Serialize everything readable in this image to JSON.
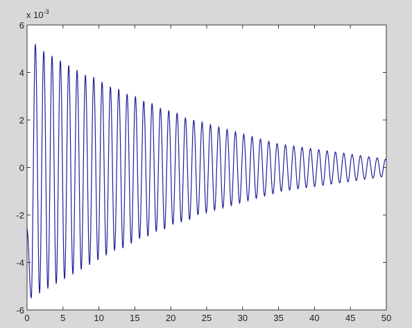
{
  "chart_data": {
    "type": "line",
    "title": "",
    "xlabel": "",
    "ylabel": "",
    "exponent_label": "x 10",
    "exponent_power": "-3",
    "xlim": [
      0,
      50
    ],
    "ylim": [
      -6,
      6
    ],
    "xticks": [
      0,
      5,
      10,
      15,
      20,
      25,
      30,
      35,
      40,
      45,
      50
    ],
    "yticks": [
      -6,
      -4,
      -2,
      0,
      2,
      4,
      6
    ],
    "xtick_labels": [
      "0",
      "5",
      "10",
      "15",
      "20",
      "25",
      "30",
      "35",
      "40",
      "45",
      "50"
    ],
    "ytick_labels": [
      "-6",
      "-4",
      "-2",
      "0",
      "2",
      "4",
      "6"
    ],
    "grid": false,
    "series": [
      {
        "color": "#1f1f9a",
        "x": [
          0.0,
          0.58,
          1.16,
          1.74,
          2.32,
          2.9,
          3.48,
          4.06,
          4.64,
          5.22,
          5.8,
          6.38,
          6.96,
          7.54,
          8.12,
          8.7,
          9.28,
          9.86,
          10.44,
          11.02,
          11.6,
          12.18,
          12.76,
          13.34,
          13.92,
          14.5,
          15.08,
          15.66,
          16.24,
          16.82,
          17.4,
          17.98,
          18.56,
          19.14,
          19.72,
          20.3,
          20.88,
          21.46,
          22.04,
          22.62,
          23.2,
          23.78,
          24.36,
          24.94,
          25.52,
          26.1,
          26.68,
          27.26,
          27.84,
          28.42,
          29.0,
          29.58,
          30.16,
          30.74,
          31.32,
          31.9,
          32.48,
          33.06,
          33.64,
          34.22,
          34.8,
          35.38,
          35.96,
          36.54,
          37.12,
          37.7,
          38.28,
          38.86,
          39.44,
          40.02,
          40.6,
          41.18,
          41.76,
          42.34,
          42.92,
          43.5,
          44.08,
          44.66,
          45.24,
          45.82,
          46.4,
          46.98,
          47.56,
          48.14,
          48.72,
          49.3,
          49.88,
          50.0
        ],
        "y": [
          -2.6,
          -5.5,
          5.2,
          -5.3,
          4.9,
          -5.1,
          4.7,
          -4.9,
          4.5,
          -4.7,
          4.3,
          -4.5,
          4.1,
          -4.3,
          3.9,
          -4.1,
          3.8,
          -3.9,
          3.6,
          -3.7,
          3.4,
          -3.5,
          3.3,
          -3.4,
          3.1,
          -3.2,
          3.0,
          -3.0,
          2.8,
          -2.9,
          2.7,
          -2.7,
          2.5,
          -2.6,
          2.4,
          -2.4,
          2.3,
          -2.3,
          2.1,
          -2.2,
          2.0,
          -2.0,
          1.9,
          -1.9,
          1.8,
          -1.8,
          1.7,
          -1.7,
          1.6,
          -1.6,
          1.5,
          -1.5,
          1.4,
          -1.4,
          1.3,
          -1.3,
          1.2,
          -1.2,
          1.1,
          -1.1,
          1.0,
          -1.0,
          0.95,
          -0.95,
          0.9,
          -0.9,
          0.85,
          -0.85,
          0.8,
          -0.8,
          0.75,
          -0.75,
          0.7,
          -0.7,
          0.65,
          -0.65,
          0.6,
          -0.6,
          0.55,
          -0.55,
          0.5,
          -0.5,
          0.45,
          -0.45,
          0.4,
          -0.4,
          0.35,
          0.3
        ]
      }
    ]
  }
}
